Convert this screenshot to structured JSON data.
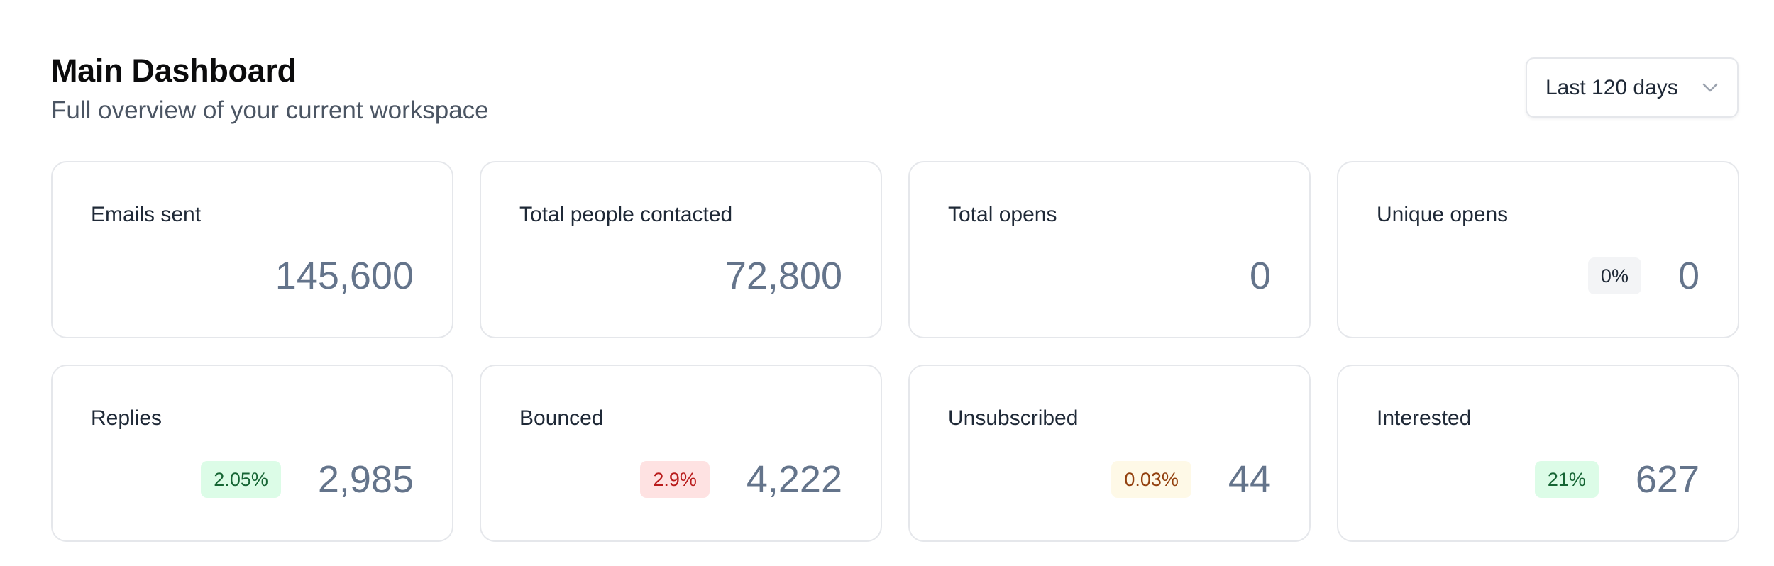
{
  "header": {
    "title": "Main Dashboard",
    "subtitle": "Full overview of your current workspace"
  },
  "date_range": {
    "selected": "Last 120 days",
    "icon": "chevron-down-icon"
  },
  "colors": {
    "badge_neutral_bg": "#f3f4f6",
    "badge_green_bg": "#dcfce7",
    "badge_green_text": "#166534",
    "badge_red_bg": "#fee2e2",
    "badge_red_text": "#b91c1c",
    "badge_yellow_bg": "#fef9e7",
    "badge_yellow_text": "#92400e",
    "value_text": "#64748b"
  },
  "stats": [
    {
      "label": "Emails sent",
      "value": "145,600",
      "badge": null,
      "tone": null
    },
    {
      "label": "Total people contacted",
      "value": "72,800",
      "badge": null,
      "tone": null
    },
    {
      "label": "Total opens",
      "value": "0",
      "badge": null,
      "tone": null
    },
    {
      "label": "Unique opens",
      "value": "0",
      "badge": "0%",
      "tone": "neutral"
    },
    {
      "label": "Replies",
      "value": "2,985",
      "badge": "2.05%",
      "tone": "green"
    },
    {
      "label": "Bounced",
      "value": "4,222",
      "badge": "2.9%",
      "tone": "red"
    },
    {
      "label": "Unsubscribed",
      "value": "44",
      "badge": "0.03%",
      "tone": "yellow"
    },
    {
      "label": "Interested",
      "value": "627",
      "badge": "21%",
      "tone": "green"
    }
  ]
}
